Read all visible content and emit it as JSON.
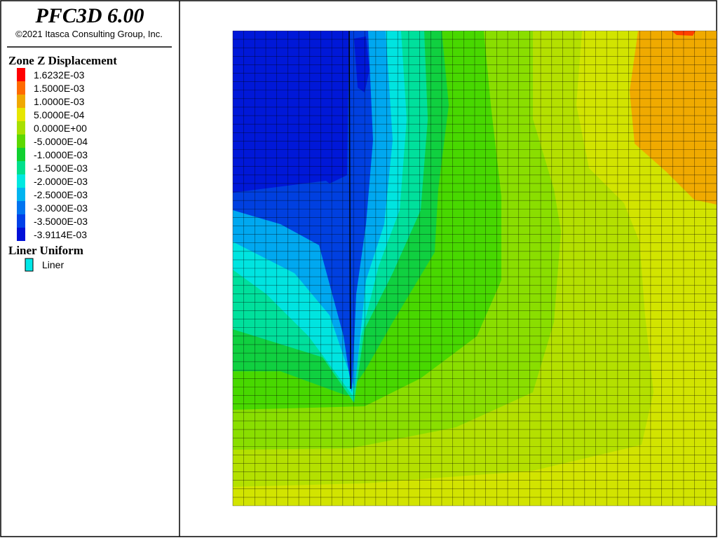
{
  "header": {
    "title": "PFC3D 6.00",
    "copyright": "©2021 Itasca Consulting Group, Inc."
  },
  "legend": {
    "title": "Zone Z Displacement",
    "items": [
      {
        "label": "1.6232E-03",
        "color": "#ff0000"
      },
      {
        "label": "1.5000E-03",
        "color": "#ff6a00"
      },
      {
        "label": "1.0000E-03",
        "color": "#f0a800"
      },
      {
        "label": "5.0000E-04",
        "color": "#e6e600"
      },
      {
        "label": "0.0000E+00",
        "color": "#a8e000"
      },
      {
        "label": "-5.0000E-04",
        "color": "#5cd800"
      },
      {
        "label": "-1.0000E-03",
        "color": "#10d030"
      },
      {
        "label": "-1.5000E-03",
        "color": "#00e08c"
      },
      {
        "label": "-2.0000E-03",
        "color": "#00e8e0"
      },
      {
        "label": "-2.5000E-03",
        "color": "#00b4f0"
      },
      {
        "label": "-3.0000E-03",
        "color": "#0074f0"
      },
      {
        "label": "-3.5000E-03",
        "color": "#0040e8"
      },
      {
        "label": "-3.9114E-03",
        "color": "#0010d8"
      }
    ]
  },
  "liner_legend": {
    "title": "Liner Uniform",
    "items": [
      {
        "label": "Liner",
        "color": "#00e8e8"
      }
    ]
  }
}
